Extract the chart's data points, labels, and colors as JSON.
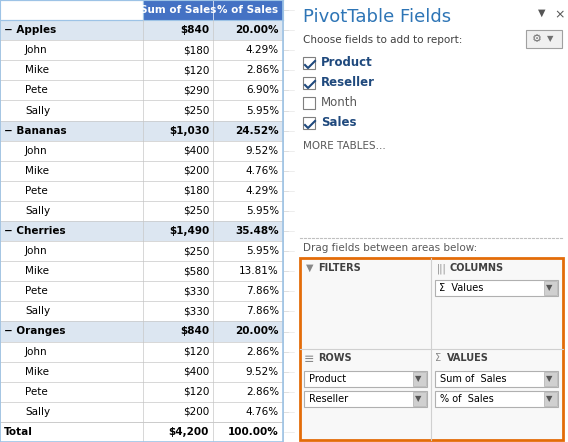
{
  "title": "PivotTable Fields",
  "subtitle_fields": "Choose fields to add to report:",
  "fields": [
    {
      "name": "Product",
      "checked": true
    },
    {
      "name": "Reseller",
      "checked": true
    },
    {
      "name": "Month",
      "checked": false
    },
    {
      "name": "Sales",
      "checked": true
    }
  ],
  "more_tables": "MORE TABLES...",
  "drag_label": "Drag fields between areas below:",
  "areas": {
    "filters": "FILTERS",
    "columns": "COLUMNS",
    "rows": "ROWS",
    "values": "VALUES"
  },
  "columns_item": "Values",
  "rows_items": [
    "Product",
    "Reseller"
  ],
  "values_items": [
    "Sum of  Sales",
    "% of  Sales"
  ],
  "table_header_col1": "Sum of Sales",
  "table_header_col2": "% of Sales",
  "table_data": [
    {
      "label": "− Apples",
      "indent": false,
      "bold": true,
      "sales": "$840",
      "pct": "20.00%",
      "group": true
    },
    {
      "label": "John",
      "indent": true,
      "bold": false,
      "sales": "$180",
      "pct": "4.29%",
      "group": false
    },
    {
      "label": "Mike",
      "indent": true,
      "bold": false,
      "sales": "$120",
      "pct": "2.86%",
      "group": false
    },
    {
      "label": "Pete",
      "indent": true,
      "bold": false,
      "sales": "$290",
      "pct": "6.90%",
      "group": false
    },
    {
      "label": "Sally",
      "indent": true,
      "bold": false,
      "sales": "$250",
      "pct": "5.95%",
      "group": false
    },
    {
      "label": "− Bananas",
      "indent": false,
      "bold": true,
      "sales": "$1,030",
      "pct": "24.52%",
      "group": true
    },
    {
      "label": "John",
      "indent": true,
      "bold": false,
      "sales": "$400",
      "pct": "9.52%",
      "group": false
    },
    {
      "label": "Mike",
      "indent": true,
      "bold": false,
      "sales": "$200",
      "pct": "4.76%",
      "group": false
    },
    {
      "label": "Pete",
      "indent": true,
      "bold": false,
      "sales": "$180",
      "pct": "4.29%",
      "group": false
    },
    {
      "label": "Sally",
      "indent": true,
      "bold": false,
      "sales": "$250",
      "pct": "5.95%",
      "group": false
    },
    {
      "label": "− Cherries",
      "indent": false,
      "bold": true,
      "sales": "$1,490",
      "pct": "35.48%",
      "group": true
    },
    {
      "label": "John",
      "indent": true,
      "bold": false,
      "sales": "$250",
      "pct": "5.95%",
      "group": false
    },
    {
      "label": "Mike",
      "indent": true,
      "bold": false,
      "sales": "$580",
      "pct": "13.81%",
      "group": false
    },
    {
      "label": "Pete",
      "indent": true,
      "bold": false,
      "sales": "$330",
      "pct": "7.86%",
      "group": false
    },
    {
      "label": "Sally",
      "indent": true,
      "bold": false,
      "sales": "$330",
      "pct": "7.86%",
      "group": false
    },
    {
      "label": "− Oranges",
      "indent": false,
      "bold": true,
      "sales": "$840",
      "pct": "20.00%",
      "group": true
    },
    {
      "label": "John",
      "indent": true,
      "bold": false,
      "sales": "$120",
      "pct": "2.86%",
      "group": false
    },
    {
      "label": "Mike",
      "indent": true,
      "bold": false,
      "sales": "$400",
      "pct": "9.52%",
      "group": false
    },
    {
      "label": "Pete",
      "indent": true,
      "bold": false,
      "sales": "$120",
      "pct": "2.86%",
      "group": false
    },
    {
      "label": "Sally",
      "indent": true,
      "bold": false,
      "sales": "$200",
      "pct": "4.76%",
      "group": false
    }
  ],
  "total_label": "Total",
  "total_sales": "$4,200",
  "total_pct": "100.00%",
  "header_bg": "#4472c4",
  "header_fg": "#ffffff",
  "group_bg": "#dce6f1",
  "white_bg": "#ffffff",
  "grid_color": "#c8c8c8",
  "table_border": "#9dc3e6",
  "orange_border": "#e36c09",
  "panel_title_color": "#2e75b6",
  "field_checked_color": "#1f497d",
  "field_unchecked_color": "#595959",
  "more_tables_color": "#595959",
  "drag_label_color": "#595959",
  "area_label_color": "#595959",
  "cb_border_color": "#7f7f7f",
  "cb_check_color": "#1f497d",
  "dropdown_border": "#b0b0b0",
  "dropdown_arrow_color": "#555555",
  "sep_color": "#c0c0c0",
  "right_panel_bg": "#f5f5f5",
  "area_box_bg": "#f0f0f0"
}
